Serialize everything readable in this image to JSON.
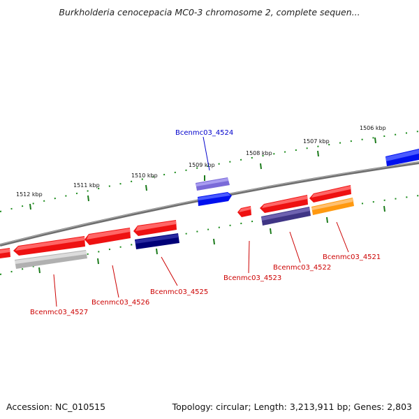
{
  "title": "Burkholderia cenocepacia MC0-3 chromosome 2, complete sequen...",
  "footer": {
    "accession": "Accession: NC_010515",
    "topology": "Topology: circular; Length: 3,213,911 bp; Genes: 2,803"
  },
  "kbp_labels": [
    "1506 kbp",
    "1507 kbp",
    "1508 kbp",
    "1509 kbp",
    "1510 kbp",
    "1511 kbp",
    "1512 kbp"
  ],
  "gene_labels": [
    {
      "id": "Bcenmc03_4524",
      "color": "#0000cc"
    },
    {
      "id": "Bcenmc03_4521",
      "color": "#cc0000"
    },
    {
      "id": "Bcenmc03_4522",
      "color": "#cc0000"
    },
    {
      "id": "Bcenmc03_4523",
      "color": "#cc0000"
    },
    {
      "id": "Bcenmc03_4525",
      "color": "#cc0000"
    },
    {
      "id": "Bcenmc03_4526",
      "color": "#cc0000"
    },
    {
      "id": "Bcenmc03_4527",
      "color": "#cc0000"
    }
  ],
  "colors": {
    "backbone": "#7a7a7a",
    "tick": "#1a7a1a",
    "gene_red": "#ee1111",
    "gene_blue": "#0000ee",
    "gene_lightblue": "#6a5acd",
    "gene_navy": "#000077",
    "gene_slate": "#4a3f88",
    "gene_orange": "#ff9910",
    "gene_gray": "#b8b8b8"
  }
}
